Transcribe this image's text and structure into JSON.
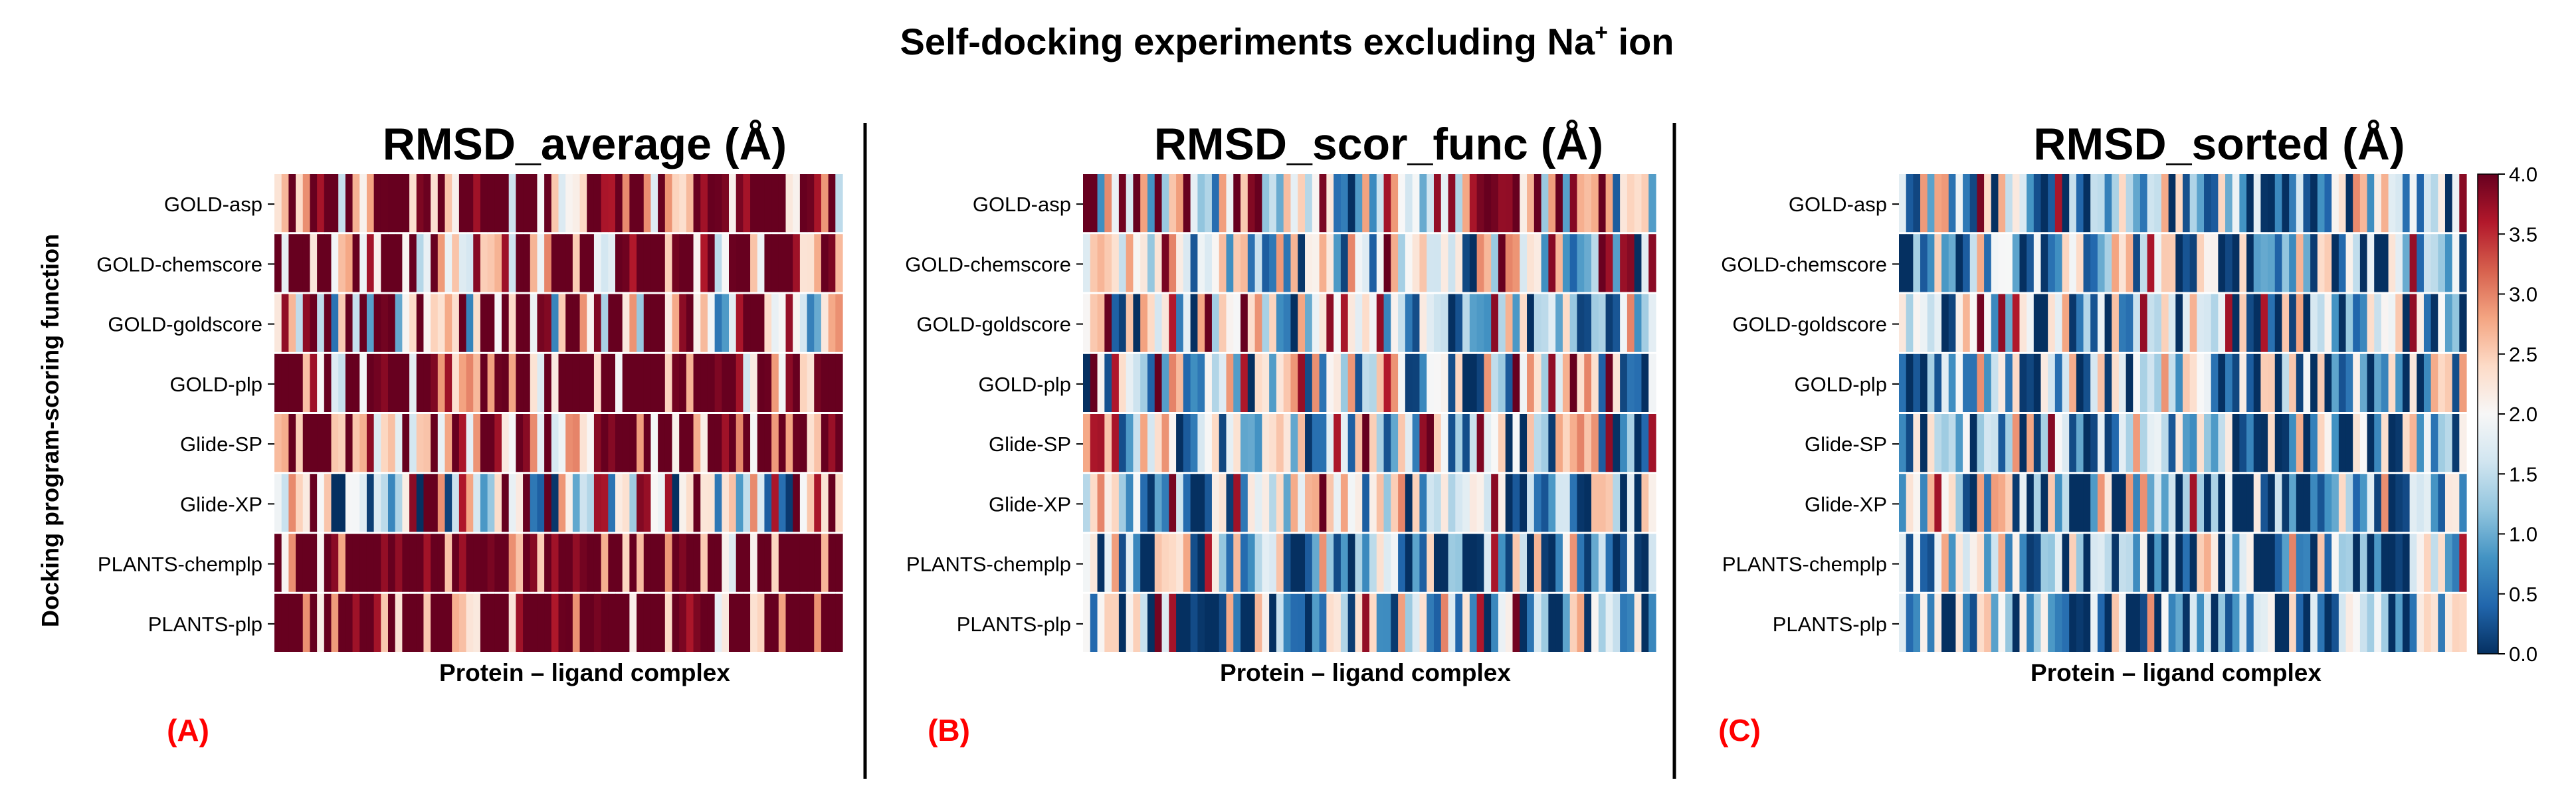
{
  "title": "Self-docking experiments excluding Na",
  "title_sup": "+",
  "title_suffix": " ion",
  "colors": {
    "cmap": [
      "#053061",
      "#2166ac",
      "#4393c3",
      "#92c5de",
      "#d1e5f0",
      "#f7f7f7",
      "#fddbc7",
      "#f4a582",
      "#d6604d",
      "#b2182b",
      "#67001f"
    ],
    "divider": "#000000",
    "panel_letter": "#ff0000"
  },
  "chart_data": [
    {
      "type": "heatmap",
      "panel_letter": "(A)",
      "title": "RMSD_average (Å)",
      "xlabel": "Protein – ligand complex",
      "ylabel": "Docking program-scoring function",
      "rows": [
        "GOLD-asp",
        "GOLD-chemscore",
        "GOLD-goldscore",
        "GOLD-plp",
        "Glide-SP",
        "Glide-XP",
        "PLANTS-chemplp",
        "PLANTS-plp"
      ],
      "n_complexes": 80,
      "value_range": [
        0.0,
        4.0
      ],
      "row_mean_rmsd": [
        3.3,
        3.2,
        2.6,
        3.4,
        3.3,
        1.9,
        3.7,
        3.7
      ],
      "seed": 11
    },
    {
      "type": "heatmap",
      "panel_letter": "(B)",
      "title": "RMSD_scor_func (Å)",
      "xlabel": "Protein – ligand complex",
      "ylabel": "",
      "rows": [
        "GOLD-asp",
        "GOLD-chemscore",
        "GOLD-goldscore",
        "GOLD-plp",
        "Glide-SP",
        "Glide-XP",
        "PLANTS-chemplp",
        "PLANTS-plp"
      ],
      "n_complexes": 80,
      "value_range": [
        0.0,
        4.0
      ],
      "row_mean_rmsd": [
        2.2,
        1.9,
        1.8,
        1.8,
        1.7,
        1.6,
        1.3,
        1.4
      ],
      "seed": 29
    },
    {
      "type": "heatmap",
      "panel_letter": "(C)",
      "title": "RMSD_sorted (Å)",
      "xlabel": "Protein – ligand complex",
      "ylabel": "",
      "rows": [
        "GOLD-asp",
        "GOLD-chemscore",
        "GOLD-goldscore",
        "GOLD-plp",
        "Glide-SP",
        "Glide-XP",
        "PLANTS-chemplp",
        "PLANTS-plp"
      ],
      "n_complexes": 80,
      "value_range": [
        0.0,
        4.0
      ],
      "row_mean_rmsd": [
        1.4,
        1.3,
        1.4,
        1.3,
        1.3,
        1.3,
        1.1,
        1.1
      ],
      "seed": 47
    }
  ],
  "colorbar": {
    "min": 0.0,
    "max": 4.0,
    "ticks": [
      "0.0",
      "0.5",
      "1.0",
      "1.5",
      "2.0",
      "2.5",
      "3.0",
      "3.5",
      "4.0"
    ]
  }
}
